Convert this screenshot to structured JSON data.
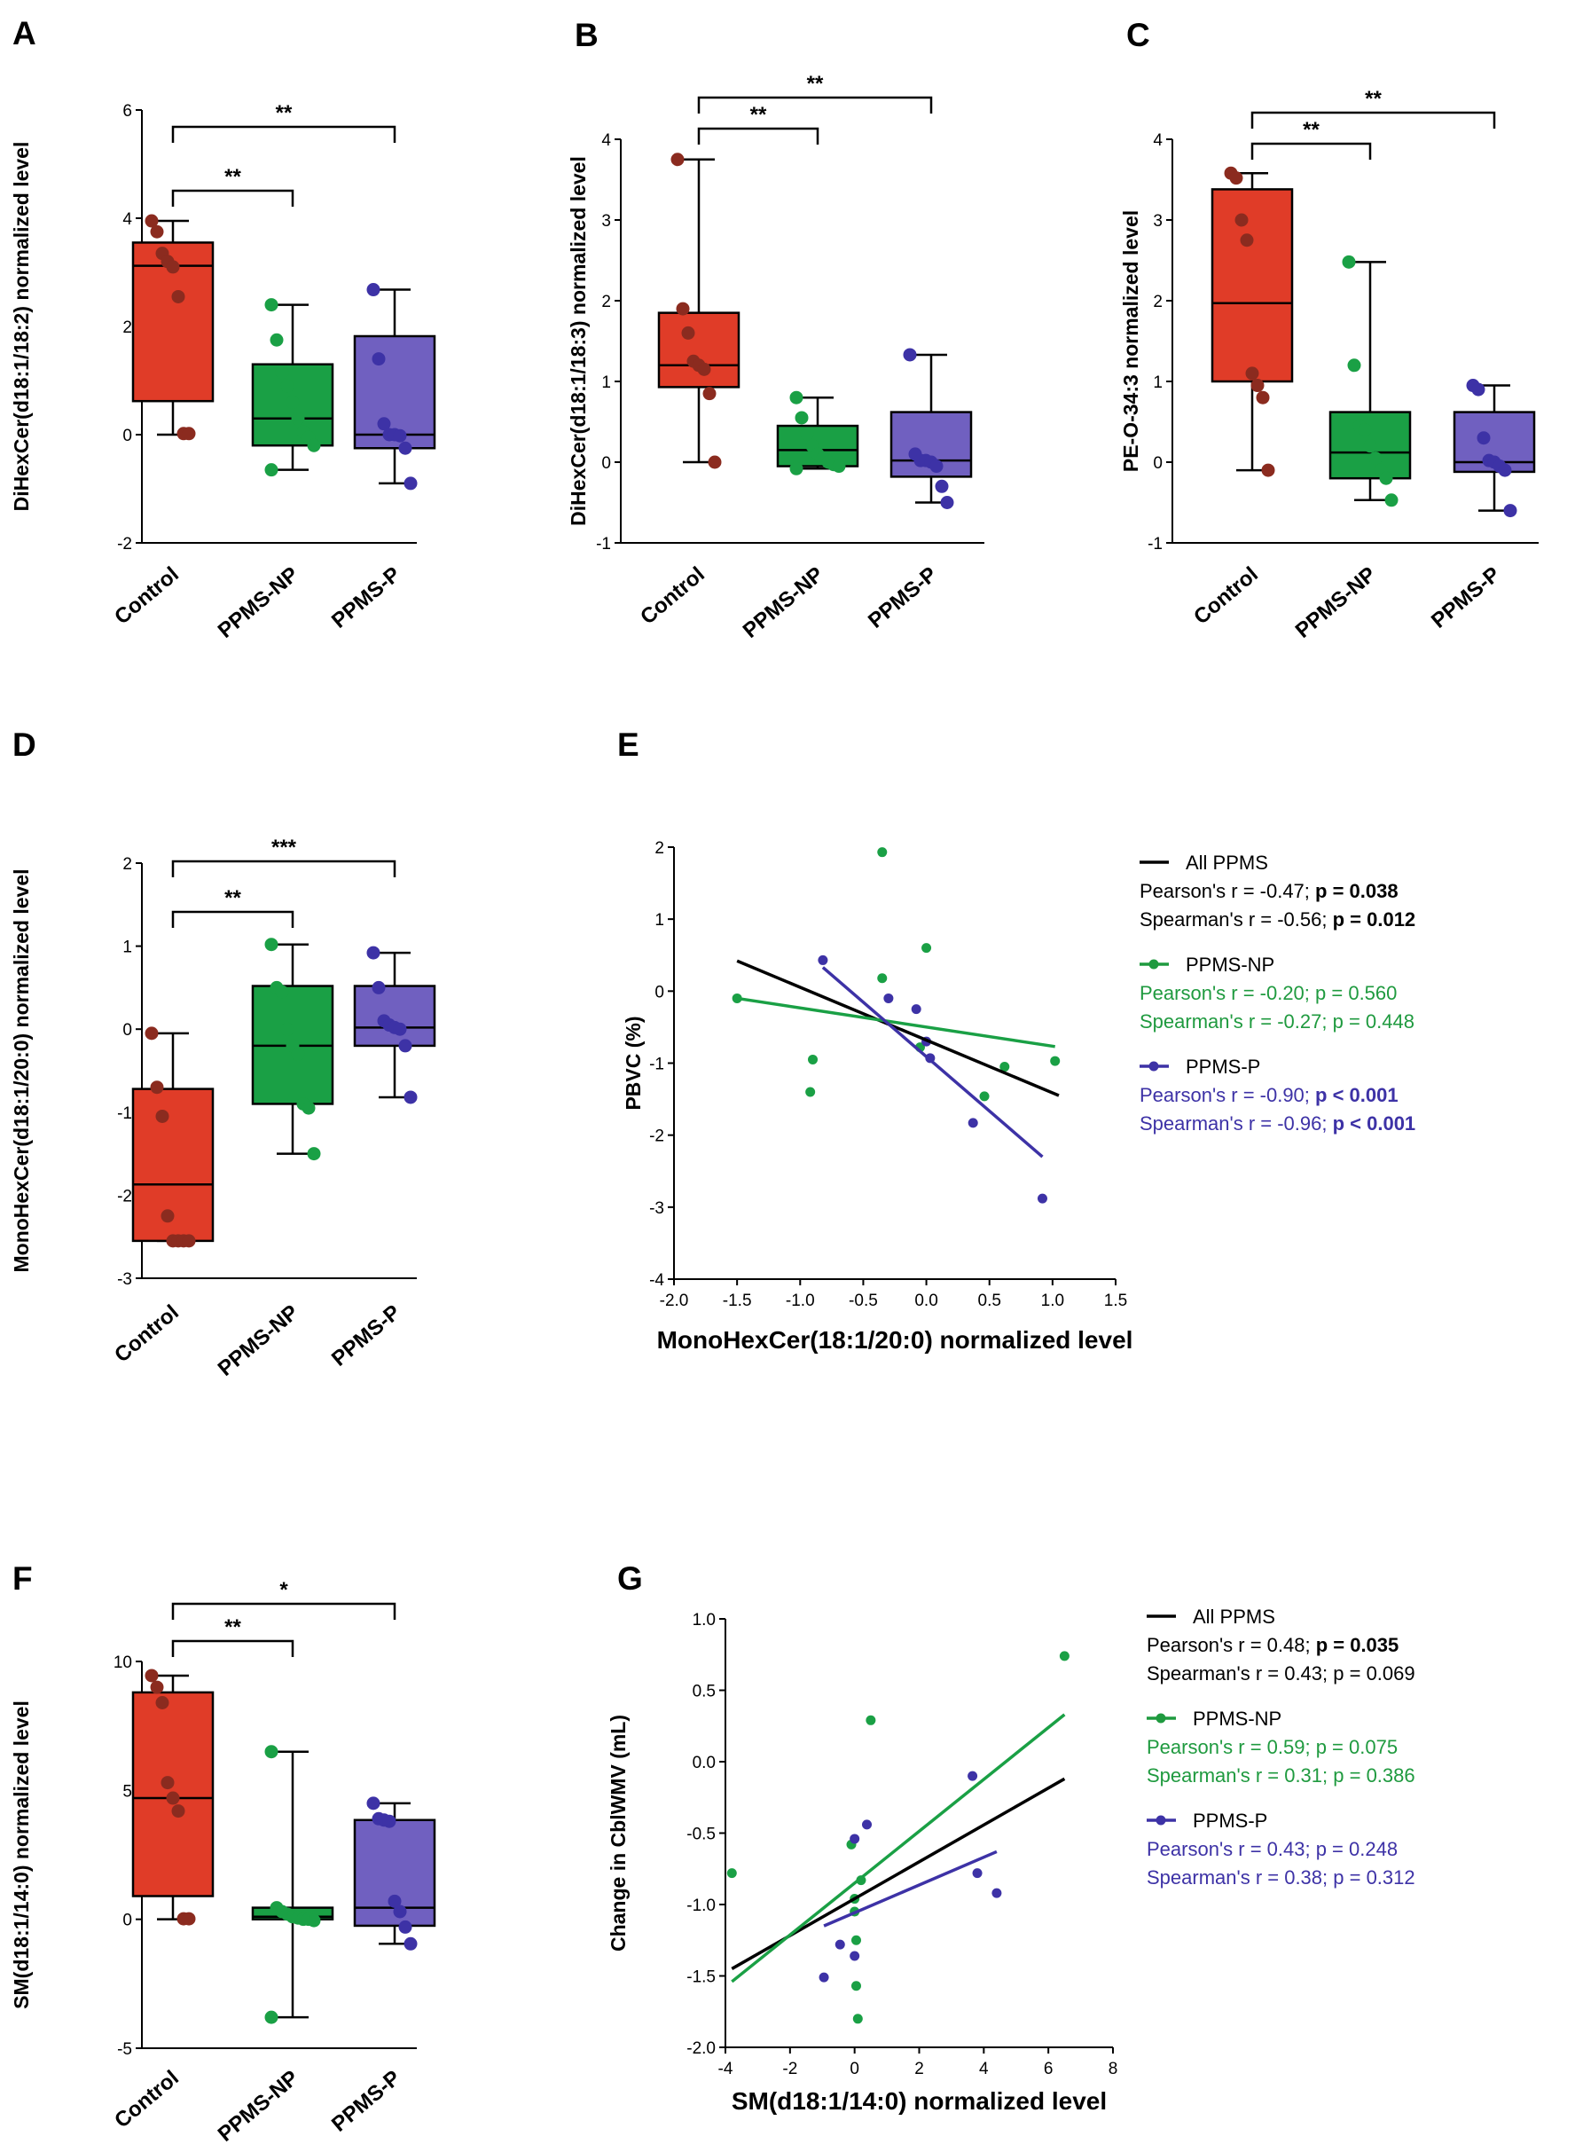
{
  "colors": {
    "control_fill": "#e03c28",
    "control_dot": "#8b2b1f",
    "np_fill": "#1aa045",
    "np_dot": "#1aa045",
    "p_fill": "#7060c0",
    "p_dot": "#3d32a6",
    "stat_black": "#000000",
    "stat_green": "#1f9a3f",
    "stat_blue": "#3d32a6"
  },
  "chart_data": [
    {
      "id": "A",
      "panel_label": "A",
      "type": "box",
      "ylabel": "DiHexCer(d18:1/18:2) normalized level",
      "ylim": [
        -2,
        6
      ],
      "yticks": [
        "-2",
        "0",
        "2",
        "4",
        "6"
      ],
      "ytick_values": [
        -2,
        0,
        2,
        4,
        6
      ],
      "categories": [
        "Control",
        "PPMS-NP",
        "PPMS-P"
      ],
      "groups": [
        {
          "name": "Control",
          "min": 0,
          "q1": 0.62,
          "median": 3.12,
          "q3": 3.55,
          "max": 3.95,
          "points": [
            3.95,
            3.75,
            3.35,
            3.2,
            3.1,
            2.55,
            0.02,
            0.02
          ]
        },
        {
          "name": "PPMS-NP",
          "min": -0.65,
          "q1": -0.2,
          "median": 0.3,
          "q3": 1.3,
          "max": 2.4,
          "points": [
            2.4,
            1.75,
            1.15,
            0.9,
            0.6,
            0.3,
            0.05,
            -0.05,
            -0.2,
            -0.65
          ]
        },
        {
          "name": "PPMS-P",
          "min": -0.9,
          "q1": -0.25,
          "median": 0.0,
          "q3": 1.82,
          "max": 2.68,
          "points": [
            2.68,
            1.4,
            0.2,
            0.0,
            0.0,
            -0.02,
            -0.25,
            -0.9
          ]
        }
      ],
      "brackets": [
        {
          "from": 0,
          "to": 1,
          "label": "**"
        },
        {
          "from": 0,
          "to": 2,
          "label": "**"
        }
      ]
    },
    {
      "id": "B",
      "panel_label": "B",
      "type": "box",
      "ylabel": "DiHexCer(d18:1/18:3) normalized level",
      "ylim": [
        -1,
        4
      ],
      "yticks": [
        "-1",
        "0",
        "1",
        "2",
        "3",
        "4"
      ],
      "ytick_values": [
        -1,
        0,
        1,
        2,
        3,
        4
      ],
      "categories": [
        "Control",
        "PPMS-NP",
        "PPMS-P"
      ],
      "groups": [
        {
          "name": "Control",
          "min": 0,
          "q1": 0.93,
          "median": 1.2,
          "q3": 1.85,
          "max": 3.75,
          "points": [
            3.75,
            1.9,
            1.6,
            1.25,
            1.2,
            1.15,
            0.85,
            0.0
          ]
        },
        {
          "name": "PPMS-NP",
          "min": -0.08,
          "q1": -0.05,
          "median": 0.15,
          "q3": 0.45,
          "max": 0.8,
          "points": [
            0.8,
            0.55,
            0.35,
            0.2,
            0.1,
            0.05,
            0.0,
            -0.03,
            -0.05,
            -0.08
          ]
        },
        {
          "name": "PPMS-P",
          "min": -0.5,
          "q1": -0.18,
          "median": 0.02,
          "q3": 0.62,
          "max": 1.33,
          "points": [
            1.33,
            0.1,
            0.02,
            0.02,
            0.0,
            -0.05,
            -0.3,
            -0.5
          ]
        }
      ],
      "brackets": [
        {
          "from": 0,
          "to": 1,
          "label": "**"
        },
        {
          "from": 0,
          "to": 2,
          "label": "**"
        }
      ]
    },
    {
      "id": "C",
      "panel_label": "C",
      "type": "box",
      "ylabel": "PE-O-34:3 normalized level",
      "ylim": [
        -1,
        4
      ],
      "yticks": [
        "-1",
        "0",
        "1",
        "2",
        "3",
        "4"
      ],
      "ytick_values": [
        -1,
        0,
        1,
        2,
        3,
        4
      ],
      "categories": [
        "Control",
        "PPMS-NP",
        "PPMS-P"
      ],
      "groups": [
        {
          "name": "Control",
          "min": -0.1,
          "q1": 1.0,
          "median": 1.97,
          "q3": 3.38,
          "max": 3.58,
          "points": [
            3.58,
            3.52,
            3.0,
            2.75,
            1.1,
            0.95,
            0.8,
            -0.1
          ]
        },
        {
          "name": "PPMS-NP",
          "min": -0.47,
          "q1": -0.2,
          "median": 0.12,
          "q3": 0.62,
          "max": 2.48,
          "points": [
            2.48,
            1.2,
            0.45,
            0.4,
            0.2,
            0.05,
            -0.1,
            -0.2,
            -0.47
          ]
        },
        {
          "name": "PPMS-P",
          "min": -0.6,
          "q1": -0.12,
          "median": 0.0,
          "q3": 0.62,
          "max": 0.95,
          "points": [
            0.95,
            0.9,
            0.3,
            0.02,
            0.0,
            -0.05,
            -0.1,
            -0.6
          ]
        }
      ],
      "brackets": [
        {
          "from": 0,
          "to": 1,
          "label": "**"
        },
        {
          "from": 0,
          "to": 2,
          "label": "**"
        }
      ]
    },
    {
      "id": "D",
      "panel_label": "D",
      "type": "box",
      "ylabel": "MonoHexCer(d18:1/20:0) normalized level",
      "ylim": [
        -3,
        2
      ],
      "yticks": [
        "-3",
        "-2",
        "-1",
        "0",
        "1",
        "2"
      ],
      "ytick_values": [
        -3,
        -2,
        -1,
        0,
        1,
        2
      ],
      "categories": [
        "Control",
        "PPMS-NP",
        "PPMS-P"
      ],
      "groups": [
        {
          "name": "Control",
          "min": -2.55,
          "q1": -2.55,
          "median": -1.87,
          "q3": -0.72,
          "max": -0.05,
          "points": [
            -0.05,
            -0.7,
            -1.05,
            -2.25,
            -2.55,
            -2.55,
            -2.55,
            -2.55
          ]
        },
        {
          "name": "PPMS-NP",
          "min": -1.5,
          "q1": -0.9,
          "median": -0.2,
          "q3": 0.52,
          "max": 1.02,
          "points": [
            1.02,
            0.5,
            0.45,
            0.0,
            -0.2,
            -0.3,
            -0.9,
            -0.95,
            -1.5
          ]
        },
        {
          "name": "PPMS-P",
          "min": -0.82,
          "q1": -0.2,
          "median": 0.02,
          "q3": 0.52,
          "max": 0.92,
          "points": [
            0.92,
            0.5,
            0.1,
            0.05,
            0.02,
            0.0,
            -0.2,
            -0.82
          ]
        }
      ],
      "brackets": [
        {
          "from": 0,
          "to": 1,
          "label": "**"
        },
        {
          "from": 0,
          "to": 2,
          "label": "***"
        }
      ]
    },
    {
      "id": "F",
      "panel_label": "F",
      "type": "box",
      "ylabel": "SM(d18:1/14:0) normalized level",
      "ylim": [
        -5,
        10
      ],
      "yticks": [
        "-5",
        "0",
        "5",
        "10"
      ],
      "ytick_values": [
        -5,
        0,
        5,
        10
      ],
      "categories": [
        "Control",
        "PPMS-NP",
        "PPMS-P"
      ],
      "groups": [
        {
          "name": "Control",
          "min": 0,
          "q1": 0.9,
          "median": 4.7,
          "q3": 8.8,
          "max": 9.45,
          "points": [
            9.45,
            9.0,
            8.4,
            5.3,
            4.7,
            4.2,
            0.02,
            0.02
          ]
        },
        {
          "name": "PPMS-NP",
          "min": -3.8,
          "q1": 0.0,
          "median": 0.1,
          "q3": 0.45,
          "max": 6.5,
          "points": [
            6.5,
            0.45,
            0.3,
            0.2,
            0.1,
            0.05,
            0.0,
            0.0,
            -0.05,
            -3.8
          ]
        },
        {
          "name": "PPMS-P",
          "min": -0.95,
          "q1": -0.25,
          "median": 0.45,
          "q3": 3.85,
          "max": 4.5,
          "points": [
            4.5,
            3.9,
            3.85,
            3.8,
            0.7,
            0.3,
            -0.3,
            -0.95
          ]
        }
      ],
      "brackets": [
        {
          "from": 0,
          "to": 1,
          "label": "**"
        },
        {
          "from": 0,
          "to": 2,
          "label": "*"
        }
      ]
    },
    {
      "id": "E",
      "panel_label": "E",
      "type": "scatter",
      "xlabel": "MonoHexCer(18:1/20:0) normalized level",
      "ylabel": "PBVC (%)",
      "xlim": [
        -2.0,
        1.5
      ],
      "ylim": [
        -4,
        2
      ],
      "xticks": [
        "-2.0",
        "-1.5",
        "-1.0",
        "-0.5",
        "0.0",
        "0.5",
        "1.0",
        "1.5"
      ],
      "xtick_values": [
        -2.0,
        -1.5,
        -1.0,
        -0.5,
        0.0,
        0.5,
        1.0,
        1.5
      ],
      "yticks": [
        "-4",
        "-3",
        "-2",
        "-1",
        "0",
        "1",
        "2"
      ],
      "ytick_values": [
        -4,
        -3,
        -2,
        -1,
        0,
        1,
        2
      ],
      "series": [
        {
          "name": "PPMS-NP",
          "color_key": "np_dot",
          "x": [
            -1.5,
            -0.35,
            -0.35,
            -0.9,
            -0.92,
            0.0,
            -0.05,
            0.62,
            0.46,
            1.02
          ],
          "y": [
            -0.1,
            1.93,
            0.18,
            -0.95,
            -1.4,
            0.6,
            -0.78,
            -1.05,
            -1.46,
            -0.97
          ]
        },
        {
          "name": "PPMS-P",
          "color_key": "p_dot",
          "x": [
            -0.82,
            -0.3,
            -0.08,
            0.0,
            0.03,
            0.37,
            0.92
          ],
          "y": [
            0.43,
            -0.1,
            -0.25,
            -0.7,
            -0.93,
            -1.83,
            -2.88
          ]
        }
      ],
      "fits": [
        {
          "name": "All PPMS",
          "color_key": "stat_black",
          "x": [
            -1.5,
            1.05
          ],
          "y": [
            0.42,
            -1.45
          ]
        },
        {
          "name": "PPMS-NP",
          "color_key": "np_dot",
          "x": [
            -1.5,
            1.02
          ],
          "y": [
            -0.1,
            -0.77
          ]
        },
        {
          "name": "PPMS-P",
          "color_key": "p_dot",
          "x": [
            -0.82,
            0.92
          ],
          "y": [
            0.33,
            -2.3
          ]
        }
      ],
      "legend": [
        {
          "name": "All PPMS",
          "color_key": "stat_black",
          "marker": false,
          "pearson": "Pearson's r = -0.47;  ",
          "pearson_p": "p = 0.038",
          "pearson_bold": true,
          "spearman": "Spearman's r = -0.56; ",
          "spearman_p": "p = 0.012",
          "spearman_bold": true
        },
        {
          "name": "PPMS-NP",
          "color_key": "stat_green",
          "marker": true,
          "pearson": "Pearson's r = -0.20; ",
          "pearson_p": "p = 0.560",
          "pearson_bold": false,
          "spearman": "Spearman's r = -0.27; ",
          "spearman_p": "p = 0.448",
          "spearman_bold": false
        },
        {
          "name": "PPMS-P",
          "color_key": "stat_blue",
          "marker": true,
          "pearson": "Pearson's r = -0.90; ",
          "pearson_p": "p < 0.001",
          "pearson_bold": true,
          "spearman": "Spearman's r = -0.96; ",
          "spearman_p": "p < 0.001",
          "spearman_bold": true
        }
      ]
    },
    {
      "id": "G",
      "panel_label": "G",
      "type": "scatter",
      "xlabel": "SM(d18:1/14:0) normalized level",
      "ylabel": "Change in CblWMV (mL)",
      "xlim": [
        -4,
        8
      ],
      "ylim": [
        -2.0,
        1.0
      ],
      "xticks": [
        "-4",
        "-2",
        "0",
        "2",
        "4",
        "6",
        "8"
      ],
      "xtick_values": [
        -4,
        -2,
        0,
        2,
        4,
        6,
        8
      ],
      "yticks": [
        "-2.0",
        "-1.5",
        "-1.0",
        "-0.5",
        "0.0",
        "0.5",
        "1.0"
      ],
      "ytick_values": [
        -2.0,
        -1.5,
        -1.0,
        -0.5,
        0.0,
        0.5,
        1.0
      ],
      "series": [
        {
          "name": "PPMS-NP",
          "color_key": "np_dot",
          "x": [
            -3.8,
            6.5,
            0.5,
            -0.1,
            0.2,
            0.0,
            0.05,
            0.05,
            0.1,
            0.0
          ],
          "y": [
            -0.78,
            0.74,
            0.29,
            -0.58,
            -0.83,
            -1.05,
            -1.25,
            -1.57,
            -1.8,
            -0.96
          ]
        },
        {
          "name": "PPMS-P",
          "color_key": "p_dot",
          "x": [
            3.65,
            0.38,
            0.0,
            3.8,
            4.4,
            -0.45,
            -0.95,
            0.0
          ],
          "y": [
            -0.1,
            -0.44,
            -0.54,
            -0.78,
            -0.92,
            -1.28,
            -1.51,
            -1.36
          ]
        }
      ],
      "fits": [
        {
          "name": "All PPMS",
          "color_key": "stat_black",
          "x": [
            -3.8,
            6.5
          ],
          "y": [
            -1.45,
            -0.12
          ]
        },
        {
          "name": "PPMS-NP",
          "color_key": "np_dot",
          "x": [
            -3.8,
            6.5
          ],
          "y": [
            -1.54,
            0.33
          ]
        },
        {
          "name": "PPMS-P",
          "color_key": "p_dot",
          "x": [
            -0.95,
            4.4
          ],
          "y": [
            -1.15,
            -0.63
          ]
        }
      ],
      "legend": [
        {
          "name": "All PPMS",
          "color_key": "stat_black",
          "marker": false,
          "pearson": "Pearson's r = 0.48;  ",
          "pearson_p": "p = 0.035",
          "pearson_bold": true,
          "spearman": "Spearman's r = 0.43; ",
          "spearman_p": "p = 0.069",
          "spearman_bold": false
        },
        {
          "name": "PPMS-NP",
          "color_key": "stat_green",
          "marker": true,
          "pearson": "Pearson's r = 0.59; ",
          "pearson_p": "p = 0.075",
          "pearson_bold": false,
          "spearman": "Spearman's r = 0.31; ",
          "spearman_p": "p = 0.386",
          "spearman_bold": false
        },
        {
          "name": "PPMS-P",
          "color_key": "stat_blue",
          "marker": true,
          "pearson": "Pearson's r = 0.43; ",
          "pearson_p": "p = 0.248",
          "pearson_bold": false,
          "spearman": "Spearman's r = 0.38; ",
          "spearman_p": "p = 0.312",
          "spearman_bold": false
        }
      ]
    }
  ]
}
